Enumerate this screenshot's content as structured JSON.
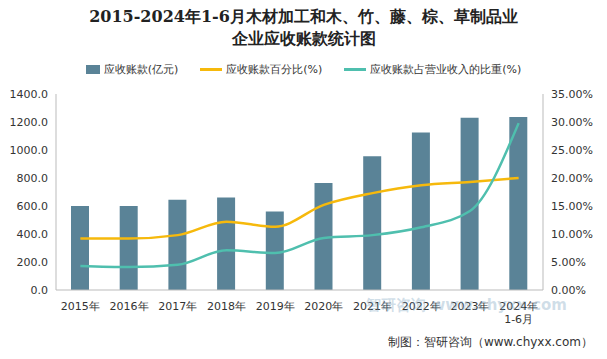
{
  "chart_data": {
    "type": "bar",
    "title": [
      "2015-2024年1-6月木材加工和木、竹、藤、棕、草制品业",
      "企业应收账款统计图"
    ],
    "categories": [
      "2015年",
      "2016年",
      "2017年",
      "2018年",
      "2019年",
      "2020年",
      "2021年",
      "2022年",
      "2023年",
      "2024年1-6月"
    ],
    "series": [
      {
        "name": "应收账款(亿元)",
        "type": "bar",
        "color": "#5a8397",
        "values": [
          600,
          600,
          645,
          660,
          560,
          765,
          955,
          1125,
          1230,
          1235
        ]
      },
      {
        "name": "应收账款百分比(%)",
        "type": "line",
        "axis": "y2",
        "color": "#f6b90c",
        "line_style": "smooth",
        "marker": "none",
        "values": [
          9.2,
          9.2,
          9.8,
          12.2,
          11.3,
          15.2,
          17.3,
          18.7,
          19.3,
          20.0
        ]
      },
      {
        "name": "应收账款占营业收入的比重(%)",
        "type": "line",
        "axis": "y2",
        "color": "#4fbfae",
        "line_style": "smooth",
        "marker": "none",
        "values": [
          4.3,
          4.1,
          4.5,
          7.1,
          6.6,
          9.3,
          9.8,
          11.2,
          14.1,
          29.8
        ]
      }
    ],
    "ylim": [
      0,
      1400
    ],
    "yticks": [
      {
        "value": 0,
        "label": "0.0"
      },
      {
        "value": 200,
        "label": "200.0"
      },
      {
        "value": 400,
        "label": "400.0"
      },
      {
        "value": 600,
        "label": "600.0"
      },
      {
        "value": 800,
        "label": "800.0"
      },
      {
        "value": 1000,
        "label": "1000.0"
      },
      {
        "value": 1200,
        "label": "1200.0"
      },
      {
        "value": 1400,
        "label": "1400.0"
      }
    ],
    "y2lim": [
      0,
      35
    ],
    "y2ticks": [
      {
        "value": 0,
        "label": "0.00%"
      },
      {
        "value": 5,
        "label": "5.00%"
      },
      {
        "value": 10,
        "label": "10.00%"
      },
      {
        "value": 15,
        "label": "15.00%"
      },
      {
        "value": 20,
        "label": "20.00%"
      },
      {
        "value": 25,
        "label": "25.00%"
      },
      {
        "value": 30,
        "label": "30.00%"
      },
      {
        "value": 35,
        "label": "35.00%"
      }
    ],
    "grid": false,
    "legend": "top",
    "source": "制图：智研咨询（www.chyxx.com）",
    "watermark": "智研咨询 www.chyxx.com"
  }
}
